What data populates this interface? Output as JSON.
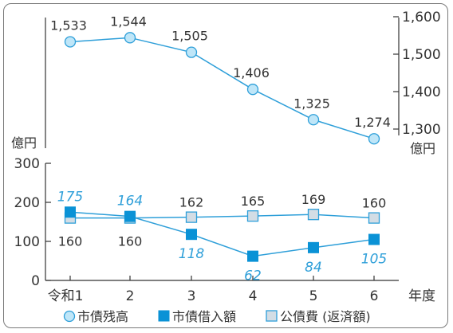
{
  "chart_data": [
    {
      "type": "line",
      "x": [
        "令和1",
        "2",
        "3",
        "4",
        "5",
        "6"
      ],
      "series": [
        {
          "name": "市債残高",
          "values": [
            1533,
            1544,
            1505,
            1406,
            1325,
            1274
          ],
          "labels": [
            "1,533",
            "1,544",
            "1,505",
            "1,406",
            "1,325",
            "1,274"
          ]
        }
      ],
      "ylabel": "億円",
      "ylim": [
        1300,
        1600
      ],
      "yticks": [
        "1,600",
        "1,500",
        "1,400",
        "1,300"
      ],
      "y_axis_side": "right"
    },
    {
      "type": "line",
      "x": [
        "令和1",
        "2",
        "3",
        "4",
        "5",
        "6"
      ],
      "xlabel": "年度",
      "ylabel": "億円",
      "ylim": [
        0,
        300
      ],
      "yticks": [
        "0",
        "100",
        "200",
        "300"
      ],
      "series": [
        {
          "name": "市債借入額",
          "values": [
            175,
            164,
            118,
            62,
            84,
            105
          ],
          "labels": [
            "175",
            "164",
            "118",
            "62",
            "84",
            "105"
          ]
        },
        {
          "name": "公債費 (返済額)",
          "values": [
            160,
            160,
            162,
            165,
            169,
            160
          ],
          "labels": [
            "160",
            "160",
            "162",
            "165",
            "169",
            "160"
          ]
        }
      ]
    }
  ],
  "legend": {
    "placement": "bottom",
    "items": [
      "市債残高",
      "市債借入額",
      "公債費 (返済額)"
    ]
  },
  "colors": {
    "line": "#2e9fd9",
    "balance_marker_fill": "#bfe6f8",
    "borrow_marker_fill": "#0a92d6",
    "repay_marker_fill": "#d3dde5",
    "repay_marker_stroke": "#2e9fd9",
    "text": "#333333",
    "borrow_label": "#2e9fd9"
  }
}
